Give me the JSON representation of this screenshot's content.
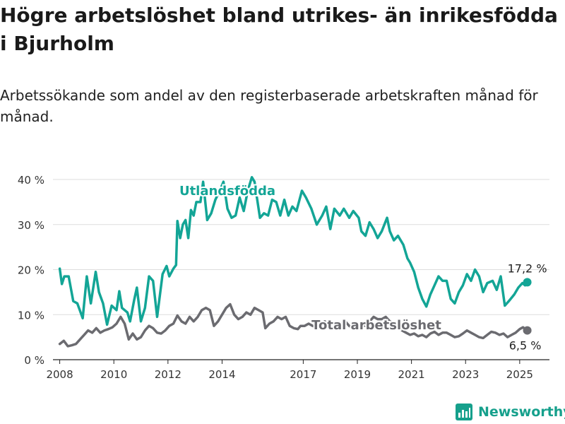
{
  "header": {
    "title": "Högre arbetslöshet bland utrikes- än inrikesfödda i Bjurholm",
    "subtitle": "Arbetssökande som andel av den registerbaserade arbetskraften månad för månad."
  },
  "brand": {
    "name": "Newsworthy",
    "color": "#16a08c",
    "icon": "bar-chart-logo-icon"
  },
  "chart_data": {
    "type": "line",
    "x_unit": "år",
    "xlim": [
      2007.75,
      2026.1
    ],
    "ylim": [
      0,
      40
    ],
    "y_ticks": [
      0,
      10,
      20,
      30,
      40
    ],
    "y_tick_labels": [
      "0 %",
      "10 %",
      "20 %",
      "30 %",
      "40 %"
    ],
    "x_ticks": [
      2008,
      2010,
      2012,
      2014,
      2017,
      2019,
      2021,
      2023,
      2025
    ],
    "x_tick_labels": [
      "2008",
      "2010",
      "2012",
      "2014",
      "2017",
      "2019",
      "2021",
      "2023",
      "2025"
    ],
    "grid": "horizontal",
    "legend": "inline labels",
    "series": [
      {
        "name": "Utlandsfödda",
        "color": "#13a596",
        "end_label": "17,2 %",
        "points": [
          [
            2008.0,
            20.2
          ],
          [
            2008.08,
            16.8
          ],
          [
            2008.17,
            18.5
          ],
          [
            2008.33,
            18.5
          ],
          [
            2008.5,
            13
          ],
          [
            2008.65,
            12.5
          ],
          [
            2008.85,
            9.2
          ],
          [
            2009.0,
            18.5
          ],
          [
            2009.15,
            12.5
          ],
          [
            2009.33,
            19.5
          ],
          [
            2009.45,
            15
          ],
          [
            2009.6,
            12.5
          ],
          [
            2009.75,
            7.8
          ],
          [
            2009.92,
            12
          ],
          [
            2010.1,
            11
          ],
          [
            2010.2,
            15.2
          ],
          [
            2010.3,
            11.5
          ],
          [
            2010.5,
            10.5
          ],
          [
            2010.6,
            8.5
          ],
          [
            2010.75,
            13.2
          ],
          [
            2010.85,
            16
          ],
          [
            2011.0,
            8.5
          ],
          [
            2011.15,
            11.5
          ],
          [
            2011.3,
            18.5
          ],
          [
            2011.45,
            17.5
          ],
          [
            2011.6,
            9.5
          ],
          [
            2011.8,
            19
          ],
          [
            2011.95,
            20.8
          ],
          [
            2012.05,
            18.5
          ],
          [
            2012.2,
            20.2
          ],
          [
            2012.3,
            21
          ],
          [
            2012.35,
            30.8
          ],
          [
            2012.45,
            27
          ],
          [
            2012.55,
            30
          ],
          [
            2012.65,
            31
          ],
          [
            2012.75,
            27
          ],
          [
            2012.85,
            33.2
          ],
          [
            2012.95,
            32
          ],
          [
            2013.05,
            35
          ],
          [
            2013.2,
            35
          ],
          [
            2013.3,
            39.5
          ],
          [
            2013.45,
            31
          ],
          [
            2013.6,
            32.5
          ],
          [
            2013.75,
            35.5
          ],
          [
            2013.95,
            38
          ],
          [
            2014.05,
            39.5
          ],
          [
            2014.2,
            33.5
          ],
          [
            2014.35,
            31.5
          ],
          [
            2014.5,
            32
          ],
          [
            2014.65,
            36
          ],
          [
            2014.8,
            33
          ],
          [
            2014.95,
            37.5
          ],
          [
            2015.1,
            40.5
          ],
          [
            2015.2,
            39.5
          ],
          [
            2015.4,
            31.5
          ],
          [
            2015.55,
            32.5
          ],
          [
            2015.7,
            32
          ],
          [
            2015.85,
            35.5
          ],
          [
            2016.0,
            35
          ],
          [
            2016.15,
            32
          ],
          [
            2016.3,
            35.5
          ],
          [
            2016.45,
            32
          ],
          [
            2016.6,
            34
          ],
          [
            2016.75,
            33
          ],
          [
            2016.95,
            37.5
          ],
          [
            2017.1,
            36
          ],
          [
            2017.3,
            33.5
          ],
          [
            2017.5,
            30
          ],
          [
            2017.7,
            32
          ],
          [
            2017.85,
            34
          ],
          [
            2018.0,
            29
          ],
          [
            2018.15,
            33.5
          ],
          [
            2018.35,
            32
          ],
          [
            2018.5,
            33.5
          ],
          [
            2018.7,
            31.5
          ],
          [
            2018.85,
            33
          ],
          [
            2019.05,
            31.5
          ],
          [
            2019.15,
            28.5
          ],
          [
            2019.3,
            27.5
          ],
          [
            2019.45,
            30.5
          ],
          [
            2019.6,
            29
          ],
          [
            2019.75,
            27
          ],
          [
            2019.9,
            28.5
          ],
          [
            2020.1,
            31.5
          ],
          [
            2020.2,
            28.5
          ],
          [
            2020.35,
            26.5
          ],
          [
            2020.5,
            27.5
          ],
          [
            2020.7,
            25.5
          ],
          [
            2020.85,
            22.5
          ],
          [
            2020.95,
            21.5
          ],
          [
            2021.1,
            19.5
          ],
          [
            2021.25,
            16
          ],
          [
            2021.4,
            13.5
          ],
          [
            2021.55,
            11.8
          ],
          [
            2021.7,
            14.5
          ],
          [
            2021.85,
            16.5
          ],
          [
            2022.0,
            18.5
          ],
          [
            2022.15,
            17.5
          ],
          [
            2022.3,
            17.5
          ],
          [
            2022.45,
            13.5
          ],
          [
            2022.6,
            12.5
          ],
          [
            2022.75,
            15
          ],
          [
            2022.9,
            16.5
          ],
          [
            2023.05,
            19
          ],
          [
            2023.2,
            17.5
          ],
          [
            2023.35,
            20
          ],
          [
            2023.5,
            18.5
          ],
          [
            2023.65,
            15
          ],
          [
            2023.8,
            17
          ],
          [
            2024.0,
            17.5
          ],
          [
            2024.15,
            15.5
          ],
          [
            2024.3,
            18.5
          ],
          [
            2024.45,
            12
          ],
          [
            2024.6,
            13
          ],
          [
            2024.8,
            14.5
          ],
          [
            2024.95,
            16
          ],
          [
            2025.1,
            17
          ],
          [
            2025.2,
            16.5
          ],
          [
            2025.28,
            17.2
          ]
        ]
      },
      {
        "name": "Total arbetslöshet",
        "color": "#6b6b70",
        "end_label": "6,5 %",
        "points": [
          [
            2008.0,
            3.5
          ],
          [
            2008.15,
            4.2
          ],
          [
            2008.3,
            3
          ],
          [
            2008.45,
            3.2
          ],
          [
            2008.6,
            3.5
          ],
          [
            2008.75,
            4.5
          ],
          [
            2008.9,
            5.5
          ],
          [
            2009.05,
            6.5
          ],
          [
            2009.2,
            6
          ],
          [
            2009.35,
            7
          ],
          [
            2009.5,
            6
          ],
          [
            2009.65,
            6.5
          ],
          [
            2009.8,
            6.8
          ],
          [
            2009.95,
            7.2
          ],
          [
            2010.1,
            8
          ],
          [
            2010.25,
            9.5
          ],
          [
            2010.4,
            8
          ],
          [
            2010.55,
            4.5
          ],
          [
            2010.7,
            5.8
          ],
          [
            2010.85,
            4.5
          ],
          [
            2011.0,
            5
          ],
          [
            2011.15,
            6.5
          ],
          [
            2011.3,
            7.5
          ],
          [
            2011.45,
            7
          ],
          [
            2011.6,
            6
          ],
          [
            2011.75,
            5.8
          ],
          [
            2011.9,
            6.5
          ],
          [
            2012.05,
            7.5
          ],
          [
            2012.2,
            8
          ],
          [
            2012.35,
            9.8
          ],
          [
            2012.5,
            8.5
          ],
          [
            2012.65,
            8
          ],
          [
            2012.8,
            9.5
          ],
          [
            2012.95,
            8.5
          ],
          [
            2013.1,
            9.5
          ],
          [
            2013.25,
            11
          ],
          [
            2013.4,
            11.5
          ],
          [
            2013.55,
            11
          ],
          [
            2013.7,
            7.5
          ],
          [
            2013.85,
            8.5
          ],
          [
            2014.0,
            10
          ],
          [
            2014.15,
            11.5
          ],
          [
            2014.3,
            12.3
          ],
          [
            2014.45,
            10
          ],
          [
            2014.6,
            9
          ],
          [
            2014.75,
            9.5
          ],
          [
            2014.9,
            10.5
          ],
          [
            2015.05,
            10
          ],
          [
            2015.2,
            11.5
          ],
          [
            2015.35,
            11
          ],
          [
            2015.5,
            10.5
          ],
          [
            2015.6,
            7
          ],
          [
            2015.75,
            8
          ],
          [
            2015.9,
            8.5
          ],
          [
            2016.05,
            9.5
          ],
          [
            2016.2,
            9
          ],
          [
            2016.35,
            9.5
          ],
          [
            2016.5,
            7.5
          ],
          [
            2016.65,
            7
          ],
          [
            2016.8,
            6.8
          ],
          [
            2016.9,
            7.5
          ],
          [
            2017.05,
            7.5
          ],
          [
            2017.2,
            8
          ],
          [
            2017.35,
            7.5
          ],
          [
            2017.5,
            7.2
          ],
          [
            2017.65,
            8
          ],
          [
            2017.8,
            8.5
          ],
          [
            2017.95,
            7.5
          ],
          [
            2018.1,
            7
          ],
          [
            2018.25,
            7.5
          ],
          [
            2018.4,
            8
          ],
          [
            2018.55,
            8.5
          ],
          [
            2018.7,
            7.5
          ],
          [
            2018.85,
            7
          ],
          [
            2019.0,
            7.5
          ],
          [
            2019.15,
            8
          ],
          [
            2019.3,
            7.5
          ],
          [
            2019.45,
            8.5
          ],
          [
            2019.6,
            9.5
          ],
          [
            2019.75,
            9
          ],
          [
            2019.9,
            9
          ],
          [
            2020.05,
            9.5
          ],
          [
            2020.2,
            8.5
          ],
          [
            2020.35,
            8
          ],
          [
            2020.5,
            7.5
          ],
          [
            2020.65,
            6.5
          ],
          [
            2020.8,
            6
          ],
          [
            2020.95,
            5.5
          ],
          [
            2021.1,
            5.8
          ],
          [
            2021.25,
            5.2
          ],
          [
            2021.4,
            5.5
          ],
          [
            2021.55,
            5
          ],
          [
            2021.7,
            5.8
          ],
          [
            2021.85,
            6.2
          ],
          [
            2022.0,
            5.5
          ],
          [
            2022.15,
            6
          ],
          [
            2022.3,
            6
          ],
          [
            2022.45,
            5.5
          ],
          [
            2022.6,
            5
          ],
          [
            2022.75,
            5.2
          ],
          [
            2022.9,
            5.8
          ],
          [
            2023.05,
            6.5
          ],
          [
            2023.2,
            6
          ],
          [
            2023.35,
            5.5
          ],
          [
            2023.5,
            5
          ],
          [
            2023.65,
            4.8
          ],
          [
            2023.8,
            5.5
          ],
          [
            2023.95,
            6.2
          ],
          [
            2024.1,
            6
          ],
          [
            2024.25,
            5.5
          ],
          [
            2024.4,
            5.8
          ],
          [
            2024.55,
            5
          ],
          [
            2024.7,
            5.5
          ],
          [
            2024.85,
            6
          ],
          [
            2025.0,
            6.8
          ],
          [
            2025.12,
            7.2
          ],
          [
            2025.2,
            6.8
          ],
          [
            2025.28,
            6.5
          ]
        ]
      }
    ]
  }
}
